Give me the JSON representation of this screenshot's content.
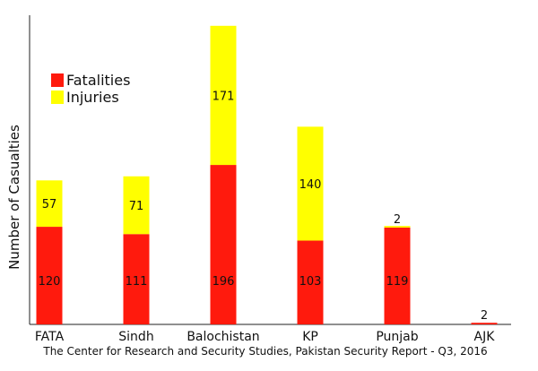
{
  "chart_data": {
    "type": "bar",
    "stacked": true,
    "categories": [
      "FATA",
      "Sindh",
      "Balochistan",
      "KP",
      "Punjab",
      "AJK"
    ],
    "series": [
      {
        "name": "Fatalities",
        "color": "#ff1a0d",
        "values": [
          120,
          111,
          196,
          103,
          119,
          2
        ]
      },
      {
        "name": "Injuries",
        "color": "#ffff00",
        "values": [
          57,
          71,
          171,
          140,
          2,
          0
        ]
      }
    ],
    "data_labels": {
      "Fatalities": [
        "120",
        "111",
        "196",
        "103",
        "119",
        "2"
      ],
      "Injuries": [
        "57",
        "71",
        "171",
        "140",
        "2",
        ""
      ]
    },
    "ylabel": "Number of Casualties",
    "xlabel": "",
    "ylim": [
      0,
      380
    ],
    "grid": false,
    "legend_position": "top-left"
  },
  "source_note": "The Center for Research and Security Studies, Pakistan Security Report - Q3, 2016"
}
